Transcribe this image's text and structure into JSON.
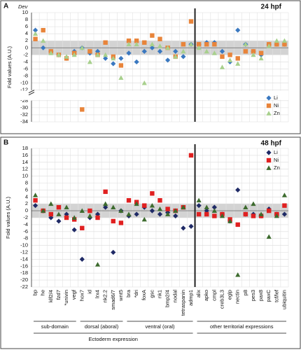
{
  "chart_data": [
    {
      "panel": "A",
      "annotation": "Dev",
      "title": "24 hpf",
      "type": "scatter",
      "y_label": "Fold values (A.U.)",
      "ylim": [
        -34,
        10
      ],
      "yticks": [
        10,
        8,
        6,
        4,
        2,
        0,
        -2,
        -4,
        -6,
        -8,
        -10,
        -12,
        -28,
        -30,
        -32,
        -34
      ],
      "axis_break": true,
      "band": [
        -2,
        2
      ],
      "grid": true,
      "legend": "lower right",
      "series": [
        {
          "name": "Li",
          "color": "#3a78c0",
          "marker": "diamond",
          "values": [
            5,
            0,
            -1,
            -2,
            -3,
            -1,
            0,
            -1.5,
            -1,
            -3,
            -4.5,
            -3,
            -1.5,
            -4,
            -1,
            0,
            -1,
            -3.5,
            -1,
            -2.5,
            1,
            1,
            1.5,
            1.5,
            -1,
            -4,
            5,
            1,
            -1,
            -2,
            1,
            1,
            1
          ]
        },
        {
          "name": "Ni",
          "color": "#e8843a",
          "marker": "square",
          "values": [
            2.5,
            5,
            -1,
            -2,
            -3,
            -1.5,
            -30.5,
            -1,
            -2,
            1.5,
            -2.5,
            -5,
            2,
            2,
            1.5,
            3.5,
            2.5,
            0,
            -2.5,
            1,
            7.5,
            1,
            1,
            1,
            -2.5,
            -2,
            -3,
            -1,
            -1,
            -1.5,
            1,
            1,
            1
          ]
        },
        {
          "name": "Zn",
          "color": "#a8d08d",
          "marker": "triangle",
          "values": [
            4,
            2,
            -1.5,
            -2,
            -2.5,
            -2,
            0,
            -4,
            -2,
            -2,
            -3,
            -8.5,
            1,
            1,
            -10,
            1,
            0.5,
            0,
            -2.5,
            -1,
            1,
            0,
            -1,
            -1.5,
            -5.5,
            -3.5,
            -4.5,
            1,
            -2,
            -3,
            0.5,
            2,
            2
          ]
        }
      ]
    },
    {
      "panel": "B",
      "title": "48 hpf",
      "type": "scatter",
      "y_label": "Fold values (A.U.)",
      "ylim": [
        -22,
        18
      ],
      "yticks": [
        18,
        16,
        14,
        12,
        10,
        8,
        6,
        4,
        2,
        0,
        -2,
        -4,
        -6,
        -8,
        -10,
        -12,
        -14,
        -16,
        -18,
        -20,
        -22
      ],
      "band": [
        -2,
        2
      ],
      "grid": true,
      "legend": "upper right",
      "category_groups": [
        {
          "label": "Ectoderm expression",
          "groups": [
            {
              "label": "sub-domain",
              "categories": [
                "bp",
                "he",
                "klf2/4",
                "fzd7",
                "*univin",
                "vegf"
              ]
            },
            {
              "label": "dorsal (aboral)",
              "categories": [
                "hox7",
                "id",
                "lrx4",
                "nk2.2",
                "smad6/7",
                "wnt5"
              ]
            },
            {
              "label": "ventral (oral)",
              "categories": [
                "bra",
                "*dri",
                "foxA",
                "gsc",
                "nk1",
                "bmp2/4",
                "nodal",
                "tetraspanin",
                "admp1"
              ]
            }
          ]
        },
        {
          "label": "other territorial expressions",
          "categories": [
            "alix",
            "apko",
            "cmpl",
            "creb3L3",
            "eglp",
            "nectin",
            "p8",
            "pes3",
            "pax8",
            "paxC",
            "tcf/lef",
            "ubiquitin"
          ]
        }
      ],
      "series": [
        {
          "name": "Li",
          "color": "#1f2a66",
          "marker": "diamond",
          "values": [
            1.5,
            0,
            -2,
            -3,
            -1,
            -5.5,
            -14,
            -2,
            -1,
            1,
            -12,
            0,
            -1.5,
            -1,
            1,
            0,
            -1,
            -0.5,
            -1.5,
            -5,
            -4.5,
            1.5,
            0,
            1,
            -1,
            -3,
            6,
            -1,
            -1,
            -1.5,
            0.5,
            -1,
            -1
          ]
        },
        {
          "name": "Ni",
          "color": "#e02020",
          "marker": "square",
          "values": [
            3,
            0,
            -1,
            1,
            -2,
            -2.5,
            -5,
            0,
            -2,
            5.5,
            -3,
            -3.5,
            3,
            2.5,
            1.5,
            5,
            3,
            0.5,
            0,
            1,
            16,
            -1,
            -1,
            -1.5,
            -1,
            -2.5,
            -4,
            -1,
            -1.5,
            -1.5,
            0,
            -1,
            1.5
          ]
        },
        {
          "name": "Zn",
          "color": "#3d6b2e",
          "marker": "triangle",
          "values": [
            4.5,
            0,
            2,
            -1,
            1,
            -2,
            0,
            -1.5,
            -15.5,
            2,
            1,
            0,
            -1,
            2,
            -2.5,
            1.5,
            0.5,
            -1,
            0,
            1,
            null,
            3,
            1,
            0,
            -1.5,
            -3,
            -18.5,
            1,
            2,
            -1,
            -7.5,
            -1.5,
            4.5
          ]
        }
      ]
    }
  ]
}
